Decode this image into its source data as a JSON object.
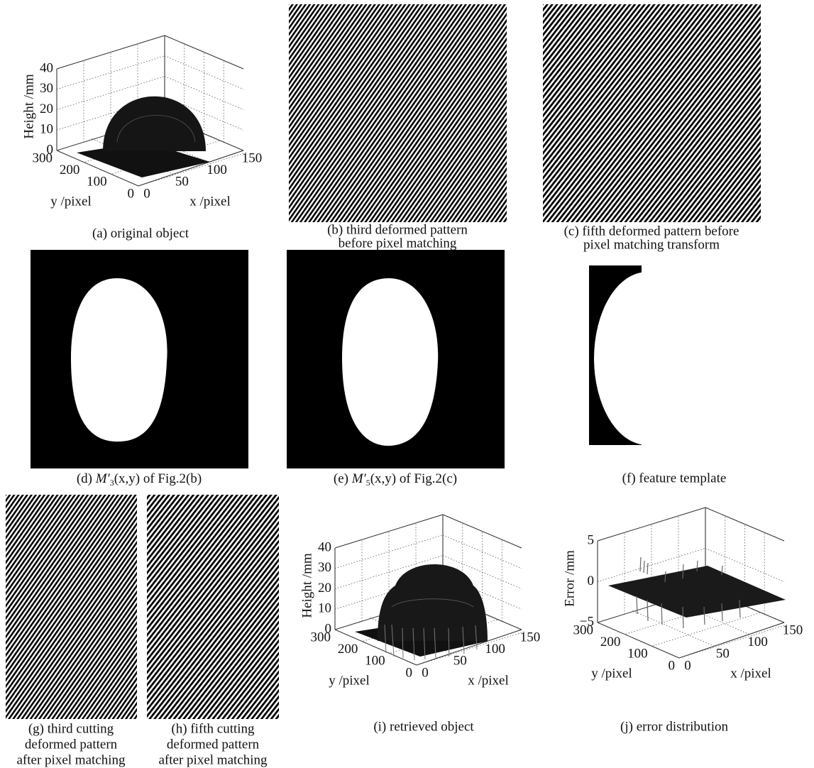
{
  "panels": {
    "a": {
      "caption": [
        "(a) original object"
      ],
      "plot": {
        "z_label": "Height /mm",
        "y_label": "y /pixel",
        "x_label": "x /pixel",
        "z_ticks": [
          "0",
          "10",
          "20",
          "30",
          "40"
        ],
        "y_ticks": [
          "300",
          "200",
          "100",
          "0"
        ],
        "x_ticks": [
          "0",
          "50",
          "100",
          "150"
        ]
      }
    },
    "b": {
      "caption": [
        "(b) third deformed pattern",
        "before pixel matching"
      ]
    },
    "c": {
      "caption": [
        "(c) fifth deformed pattern before",
        "pixel matching transform"
      ]
    },
    "d": {
      "caption_parts": {
        "prefix": "(d)",
        "symbol": "M′",
        "subscript": "3",
        "suffix": "(x,y) of Fig.2(b)"
      }
    },
    "e": {
      "caption_parts": {
        "prefix": "(e)",
        "symbol": "M′",
        "subscript": "5",
        "suffix": "(x,y) of Fig.2(c)"
      }
    },
    "f": {
      "caption": [
        "(f) feature template"
      ]
    },
    "g": {
      "caption": [
        "(g) third cutting",
        "deformed pattern",
        "after pixel matching"
      ]
    },
    "h": {
      "caption": [
        "(h) fifth cutting",
        "deformed pattern",
        "after pixel matching"
      ]
    },
    "i": {
      "caption": [
        "(i) retrieved object"
      ],
      "plot": {
        "z_label": "Height /mm",
        "y_label": "y /pixel",
        "x_label": "x /pixel",
        "z_ticks": [
          "0",
          "10",
          "20",
          "30",
          "40"
        ],
        "y_ticks": [
          "300",
          "200",
          "100",
          "0"
        ],
        "x_ticks": [
          "0",
          "50",
          "100",
          "150"
        ]
      }
    },
    "j": {
      "caption": [
        "(j) error distribution"
      ],
      "plot": {
        "z_label": "Error /mm",
        "y_label": "y /pixel",
        "x_label": "x /pixel",
        "z_ticks": [
          "−5",
          "0",
          "5"
        ],
        "y_ticks": [
          "300",
          "200",
          "100",
          "0"
        ],
        "x_ticks": [
          "0",
          "50",
          "100",
          "150"
        ]
      }
    }
  }
}
